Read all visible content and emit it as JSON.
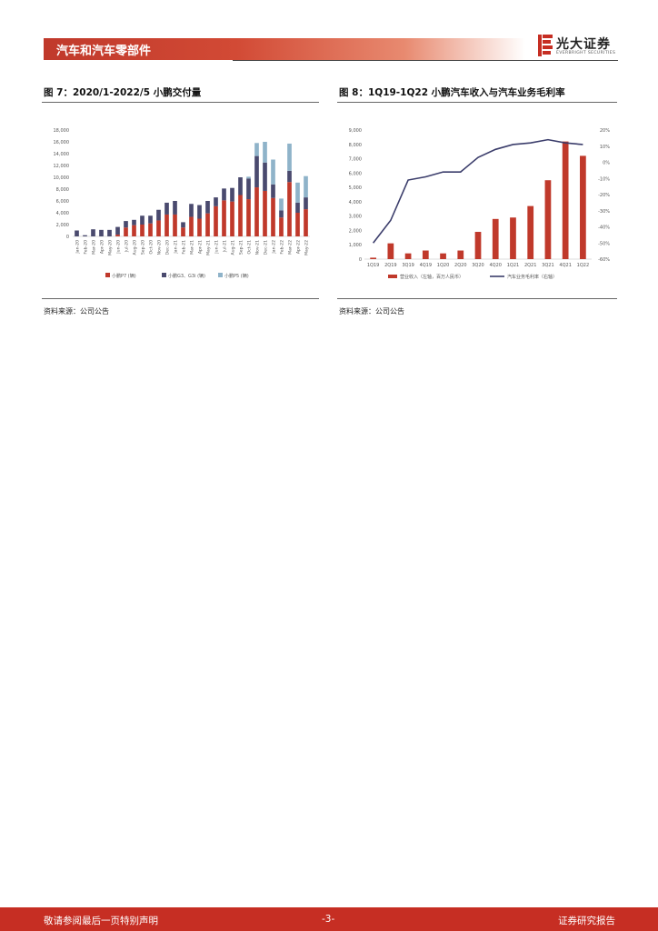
{
  "header": {
    "section": "汽车和汽车零部件",
    "logo_cn": "光大证券",
    "logo_en": "EVERBRIGHT SECURITIES"
  },
  "figure7": {
    "title": "图 7：2020/1-2022/5 小鹏交付量",
    "source": "资料来源：公司公告"
  },
  "figure8": {
    "title": "图 8：1Q19-1Q22 小鹏汽车收入与汽车业务毛利率",
    "source": "资料来源：公司公告"
  },
  "chart_data": [
    {
      "type": "bar",
      "stacked": true,
      "title": "2020/1-2022/5 小鹏交付量",
      "categories": [
        "Jan-20",
        "Feb-20",
        "Mar-20",
        "Apr-20",
        "May-20",
        "Jun-20",
        "Jul-20",
        "Aug-20",
        "Sep-20",
        "Oct-20",
        "Nov-20",
        "Dec-20",
        "Jan-21",
        "Feb-21",
        "Mar-21",
        "Apr-21",
        "May-21",
        "Jun-21",
        "Jul-21",
        "Aug-21",
        "Sep-21",
        "Oct-21",
        "Nov-21",
        "Dec-21",
        "Jan-22",
        "Feb-22",
        "Mar-22",
        "Apr-22",
        "May-22"
      ],
      "tick_labels": [
        "Jan-20",
        "",
        "Feb-20",
        "",
        "Apr-20",
        "",
        "May-20",
        "",
        "Jun-20",
        "",
        "Aug-20",
        "",
        "Sep-20",
        "",
        "Nov-20",
        "",
        "Dec-20",
        "",
        "Feb-21",
        "",
        "Mar-21",
        "",
        "Apr-21",
        "",
        "Jun-21",
        "",
        "Jul-21",
        "",
        "Aug-21",
        "",
        "Oct-21",
        "",
        "Nov-21",
        "",
        "Dec-21",
        "",
        "Jan-22",
        "",
        "Mar-22",
        "",
        "Apr-22",
        "",
        "May-22"
      ],
      "x_ticks": [
        "Jan-20",
        "Feb-20",
        "Mar-20",
        "Apr-20",
        "May-20",
        "Jun-20",
        "Jul-20",
        "Aug-20",
        "Sep-20",
        "Oct-20",
        "Nov-20",
        "Dec-20",
        "Jan-21",
        "Feb-21",
        "Mar-21",
        "Apr-21",
        "May-21",
        "Jun-21",
        "Jul-21",
        "Aug-21",
        "Sep-21",
        "Oct-21",
        "Nov-21",
        "Dec-21",
        "Jan-22",
        "Feb-22",
        "Mar-22",
        "Apr-22",
        "May-22"
      ],
      "series": [
        {
          "name": "小鹏P7 (辆)",
          "color": "#c0392b",
          "values": [
            0,
            0,
            0,
            0,
            0,
            300,
            1500,
            1900,
            2000,
            2200,
            2700,
            3700,
            3700,
            1500,
            3300,
            3000,
            3900,
            5100,
            6100,
            5900,
            7000,
            6300,
            8300,
            7700,
            6500,
            3200,
            9200,
            4000,
            4600
          ]
        },
        {
          "name": "小鹏G3、G3i (辆)",
          "color": "#4a4a6e",
          "values": [
            1000,
            200,
            1200,
            1100,
            1100,
            1300,
            1100,
            900,
            1500,
            1300,
            1800,
            2000,
            2300,
            900,
            2200,
            2300,
            2100,
            1500,
            2000,
            2300,
            3000,
            3500,
            5300,
            4800,
            2300,
            1200,
            1900,
            1700,
            2000
          ]
        },
        {
          "name": "小鹏P5 (辆)",
          "color": "#8fb3c9",
          "values": [
            0,
            0,
            0,
            0,
            0,
            0,
            0,
            0,
            0,
            0,
            0,
            0,
            0,
            0,
            0,
            0,
            0,
            0,
            0,
            0,
            0,
            300,
            2200,
            3500,
            4200,
            2000,
            4600,
            3400,
            3600
          ]
        }
      ],
      "ylim": [
        0,
        18000
      ],
      "yticks": [
        "0",
        "2,000",
        "4,000",
        "6,000",
        "8,000",
        "10,000",
        "12,000",
        "14,000",
        "16,000",
        "18,000"
      ],
      "legend": [
        "小鹏P7 (辆)",
        "小鹏G3、G3i (辆)",
        "小鹏P5 (辆)"
      ]
    },
    {
      "type": "bar+line",
      "title": "1Q19-1Q22 小鹏汽车收入与汽车业务毛利率",
      "categories": [
        "1Q19",
        "2Q19",
        "3Q19",
        "4Q19",
        "1Q20",
        "2Q20",
        "3Q20",
        "4Q20",
        "1Q21",
        "2Q21",
        "3Q21",
        "4Q21",
        "1Q22"
      ],
      "series": [
        {
          "name": "营业收入（左轴，百万人民币）",
          "type": "bar",
          "color": "#c0392b",
          "values": [
            100,
            1100,
            400,
            600,
            400,
            600,
            1900,
            2800,
            2900,
            3700,
            5500,
            8200,
            7200
          ]
        },
        {
          "name": "汽车业务毛利率（右轴）",
          "type": "line",
          "color": "#3b3d6b",
          "values": [
            -50,
            -36,
            -11,
            -9,
            -6,
            -6,
            3,
            8,
            11,
            12,
            14,
            12,
            11
          ]
        }
      ],
      "ylim_left": [
        0,
        9000
      ],
      "yticks_left": [
        "0",
        "1,000",
        "2,000",
        "3,000",
        "4,000",
        "5,000",
        "6,000",
        "7,000",
        "8,000",
        "9,000"
      ],
      "ylim_right": [
        -60,
        20
      ],
      "yticks_right": [
        "-60%",
        "-50%",
        "-40%",
        "-30%",
        "-20%",
        "-10%",
        "0%",
        "10%",
        "20%"
      ],
      "legend": [
        "营业收入（左轴，百万人民币）",
        "汽车业务毛利率（右轴）"
      ]
    }
  ],
  "footer": {
    "left": "敬请参阅最后一页特别声明",
    "center": "-3-",
    "right": "证券研究报告"
  }
}
